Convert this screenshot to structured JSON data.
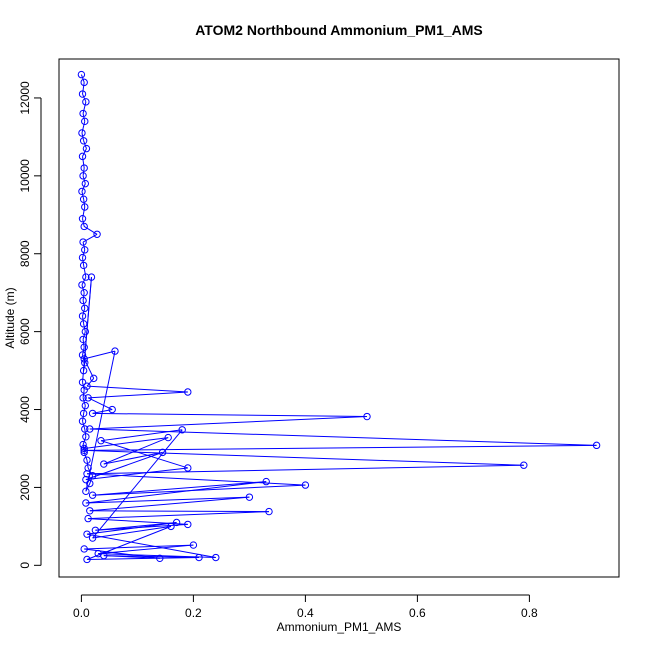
{
  "chart_data": {
    "type": "line",
    "title": "ATOM2 Northbound Ammonium_PM1_AMS",
    "xlabel": "Ammonium_PM1_AMS",
    "ylabel": "Altitude (m)",
    "xlim": [
      -0.04,
      0.96
    ],
    "ylim": [
      -300,
      13000
    ],
    "xticks": [
      0.0,
      0.2,
      0.4,
      0.6,
      0.8
    ],
    "xtick_labels": [
      "0.0",
      "0.2",
      "0.4",
      "0.6",
      "0.8"
    ],
    "yticks": [
      0,
      2000,
      4000,
      6000,
      8000,
      10000,
      12000
    ],
    "ytick_labels": [
      "0",
      "2000",
      "4000",
      "6000",
      "8000",
      "10000",
      "12000"
    ],
    "grid": false,
    "legend": "none",
    "color": "#0000ff",
    "marker": "open-circle",
    "series": [
      {
        "x": [
          0.0,
          0.005,
          0.002,
          0.008,
          0.003,
          0.006,
          0.001,
          0.004,
          0.009,
          0.002,
          0.005,
          0.003,
          0.007,
          0.001,
          0.004,
          0.006,
          0.002,
          0.005,
          0.028,
          0.003,
          0.006,
          0.002,
          0.004,
          0.008,
          0.001,
          0.005,
          0.003,
          0.006,
          0.002,
          0.004,
          0.007,
          0.003,
          0.005,
          0.002,
          0.006,
          0.004,
          0.018,
          0.002,
          0.005,
          0.003,
          0.007,
          0.004,
          0.002,
          0.006,
          0.008,
          0.003,
          0.005,
          0.01,
          0.012,
          0.02,
          0.015,
          0.008,
          0.06,
          0.005,
          0.022,
          0.01,
          0.19,
          0.012,
          0.055,
          0.02,
          0.51,
          0.015,
          0.92,
          0.005,
          0.79,
          0.01,
          0.4,
          0.02,
          0.33,
          0.008,
          0.3,
          0.015,
          0.335,
          0.012,
          0.19,
          0.025,
          0.17,
          0.01,
          0.24,
          0.03,
          0.2,
          0.005,
          0.14,
          0.04,
          0.21,
          0.01,
          0.16,
          0.02,
          0.18,
          0.035,
          0.19,
          0.008,
          0.145,
          0.04,
          0.155,
          0.005
        ],
        "y": [
          12600,
          12400,
          12100,
          11900,
          11600,
          11400,
          11100,
          10900,
          10700,
          10500,
          10200,
          10000,
          9800,
          9600,
          9400,
          9200,
          8900,
          8700,
          8500,
          8300,
          8100,
          7900,
          7700,
          7400,
          7200,
          7000,
          6800,
          6600,
          6400,
          6200,
          6000,
          5800,
          5600,
          5400,
          5200,
          5000,
          7400,
          4700,
          4500,
          4300,
          4100,
          3900,
          3700,
          3500,
          3300,
          3100,
          2900,
          2700,
          2500,
          2300,
          2100,
          1900,
          5500,
          5300,
          4800,
          4600,
          4450,
          4300,
          4000,
          3900,
          3820,
          3500,
          3080,
          2950,
          2570,
          2350,
          2060,
          1800,
          2150,
          1600,
          1750,
          1400,
          1380,
          1200,
          1050,
          900,
          1100,
          800,
          200,
          300,
          520,
          420,
          180,
          250,
          200,
          150,
          1000,
          700,
          3480,
          3200,
          2500,
          2200,
          2900,
          2600,
          3280,
          3000
        ]
      }
    ]
  }
}
